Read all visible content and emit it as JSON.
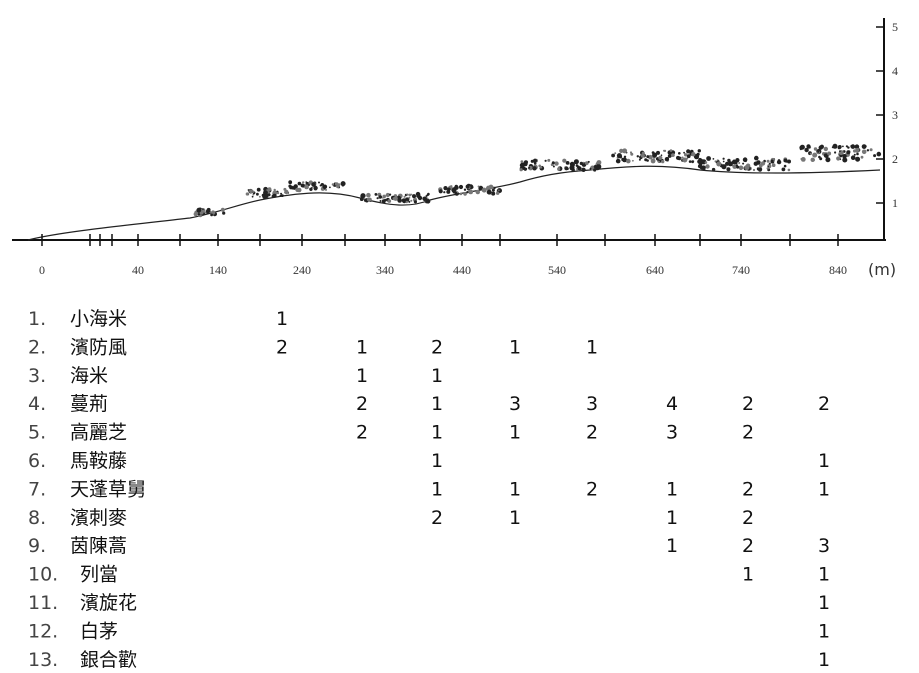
{
  "profile": {
    "x_labels": [
      "0",
      "40",
      "140",
      "240",
      "340",
      "440",
      "540",
      "640",
      "740",
      "840"
    ],
    "unit": "(m)",
    "height_labels": [
      "1",
      "2",
      "3",
      "4",
      "5"
    ]
  },
  "table": {
    "rows": [
      {
        "number": "1.",
        "name": "小海米",
        "values": [
          1,
          null,
          null,
          null,
          null,
          null,
          null,
          null
        ]
      },
      {
        "number": "2.",
        "name": "濱防風",
        "values": [
          2,
          1,
          2,
          1,
          1,
          null,
          null,
          null
        ]
      },
      {
        "number": "3.",
        "name": "海米",
        "values": [
          null,
          1,
          1,
          null,
          null,
          null,
          null,
          null
        ]
      },
      {
        "number": "4.",
        "name": "蔓荊",
        "values": [
          null,
          2,
          1,
          3,
          3,
          4,
          2,
          2
        ]
      },
      {
        "number": "5.",
        "name": "高麗芝",
        "values": [
          null,
          2,
          1,
          1,
          2,
          3,
          2,
          null
        ]
      },
      {
        "number": "6.",
        "name": "馬鞍藤",
        "values": [
          null,
          null,
          1,
          null,
          null,
          null,
          null,
          1
        ]
      },
      {
        "number": "7.",
        "name": "天蓬草舅",
        "values": [
          null,
          null,
          1,
          1,
          2,
          1,
          2,
          1
        ]
      },
      {
        "number": "8.",
        "name": "濱刺麥",
        "values": [
          null,
          null,
          2,
          1,
          null,
          1,
          2,
          null
        ]
      },
      {
        "number": "9.",
        "name": "茵陳蒿",
        "values": [
          null,
          null,
          null,
          null,
          null,
          1,
          2,
          3
        ]
      },
      {
        "number": "10.",
        "name": "列當",
        "values": [
          null,
          null,
          null,
          null,
          null,
          null,
          1,
          1
        ]
      },
      {
        "number": "11.",
        "name": "濱旋花",
        "values": [
          null,
          null,
          null,
          null,
          null,
          null,
          null,
          1
        ]
      },
      {
        "number": "12.",
        "name": "白茅",
        "values": [
          null,
          null,
          null,
          null,
          null,
          null,
          null,
          1
        ]
      },
      {
        "number": "13.",
        "name": "銀合歡",
        "values": [
          null,
          null,
          null,
          null,
          null,
          null,
          null,
          1
        ]
      }
    ]
  }
}
